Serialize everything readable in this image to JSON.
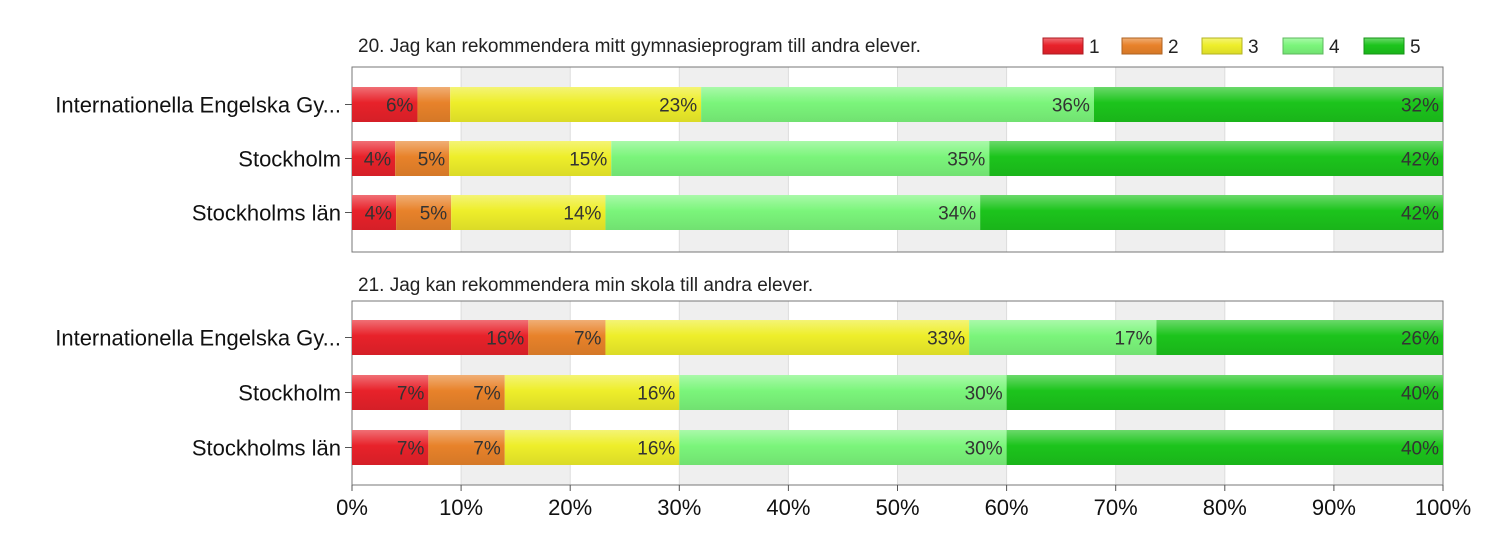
{
  "legend": {
    "items": [
      {
        "label": "1",
        "color": "#e8222a"
      },
      {
        "label": "2",
        "color": "#e8822a"
      },
      {
        "label": "3",
        "color": "#eeee2a"
      },
      {
        "label": "4",
        "color": "#7bf57b"
      },
      {
        "label": "5",
        "color": "#1cc41c"
      }
    ]
  },
  "x_ticks": [
    "0%",
    "10%",
    "20%",
    "30%",
    "40%",
    "50%",
    "60%",
    "70%",
    "80%",
    "90%",
    "100%"
  ],
  "chart_data": [
    {
      "type": "bar",
      "orientation": "horizontal",
      "stacked": true,
      "title": "20. Jag kan rekommendera mitt gymnasieprogram till andra elever.",
      "categories": [
        "Internationella Engelska Gy...",
        "Stockholm",
        "Stockholms län"
      ],
      "series": [
        {
          "name": "1",
          "values": [
            6,
            4,
            4
          ]
        },
        {
          "name": "2",
          "values": [
            3,
            5,
            5
          ]
        },
        {
          "name": "3",
          "values": [
            23,
            15,
            14
          ]
        },
        {
          "name": "4",
          "values": [
            36,
            35,
            34
          ]
        },
        {
          "name": "5",
          "values": [
            32,
            42,
            42
          ]
        }
      ],
      "data_labels": [
        [
          "6%",
          "",
          "23%",
          "36%",
          "32%"
        ],
        [
          "4%",
          "5%",
          "15%",
          "35%",
          "42%"
        ],
        [
          "4%",
          "5%",
          "14%",
          "34%",
          "42%"
        ]
      ],
      "xlim": [
        0,
        100
      ],
      "grid": true
    },
    {
      "type": "bar",
      "orientation": "horizontal",
      "stacked": true,
      "title": "21. Jag kan rekommendera min skola till andra elever.",
      "categories": [
        "Internationella Engelska Gy...",
        "Stockholm",
        "Stockholms län"
      ],
      "series": [
        {
          "name": "1",
          "values": [
            16,
            7,
            7
          ]
        },
        {
          "name": "2",
          "values": [
            7,
            7,
            7
          ]
        },
        {
          "name": "3",
          "values": [
            33,
            16,
            16
          ]
        },
        {
          "name": "4",
          "values": [
            17,
            30,
            30
          ]
        },
        {
          "name": "5",
          "values": [
            26,
            40,
            40
          ]
        }
      ],
      "data_labels": [
        [
          "16%",
          "7%",
          "33%",
          "17%",
          "26%"
        ],
        [
          "7%",
          "7%",
          "16%",
          "30%",
          "40%"
        ],
        [
          "7%",
          "7%",
          "16%",
          "30%",
          "40%"
        ]
      ],
      "xlim": [
        0,
        100
      ],
      "grid": true
    }
  ]
}
